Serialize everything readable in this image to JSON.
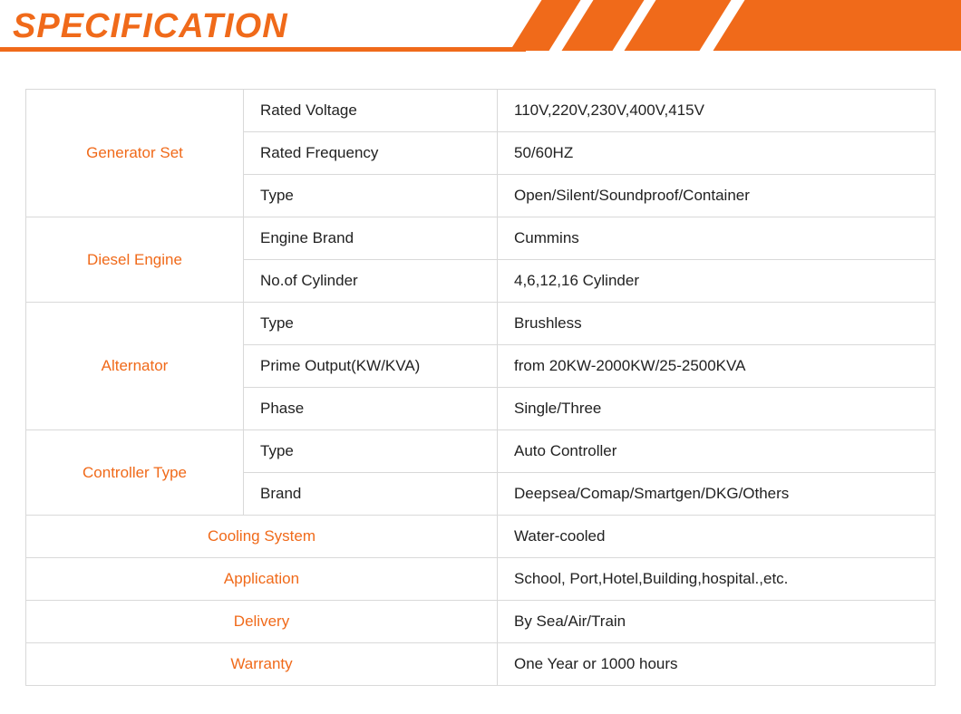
{
  "header": {
    "title": "SPECIFICATION",
    "accent_color": "#f06a1a",
    "background_color": "#ffffff",
    "title_fontsize": 38
  },
  "table": {
    "border_color": "#d9d9d9",
    "category_color": "#f06a1a",
    "text_color": "#222222",
    "fontsize": 17,
    "col_widths": {
      "category": 240,
      "param": 280
    },
    "groups": [
      {
        "category": "Generator Set",
        "rows": [
          {
            "param": "Rated Voltage",
            "value": "110V,220V,230V,400V,415V"
          },
          {
            "param": "Rated Frequency",
            "value": "50/60HZ"
          },
          {
            "param": "Type",
            "value": "Open/Silent/Soundproof/Container"
          }
        ]
      },
      {
        "category": "Diesel Engine",
        "rows": [
          {
            "param": "Engine Brand",
            "value": "Cummins"
          },
          {
            "param": "No.of Cylinder",
            "value": "4,6,12,16 Cylinder"
          }
        ]
      },
      {
        "category": "Alternator",
        "rows": [
          {
            "param": "Type",
            "value": "Brushless"
          },
          {
            "param": "Prime Output(KW/KVA)",
            "value": "from 20KW-2000KW/25-2500KVA"
          },
          {
            "param": "Phase",
            "value": "Single/Three"
          }
        ]
      },
      {
        "category": "Controller Type",
        "rows": [
          {
            "param": "Type",
            "value": "Auto Controller"
          },
          {
            "param": "Brand",
            "value": "Deepsea/Comap/Smartgen/DKG/Others"
          }
        ]
      }
    ],
    "simple_rows": [
      {
        "category": "Cooling System",
        "value": "Water-cooled"
      },
      {
        "category": "Application",
        "value": "School, Port,Hotel,Building,hospital.,etc."
      },
      {
        "category": "Delivery",
        "value": "By Sea/Air/Train"
      },
      {
        "category": "Warranty",
        "value": "One Year or 1000 hours"
      }
    ]
  }
}
